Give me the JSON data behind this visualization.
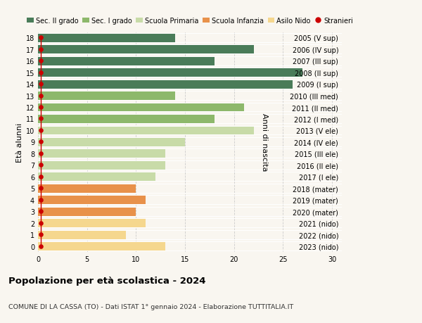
{
  "ages": [
    0,
    1,
    2,
    3,
    4,
    5,
    6,
    7,
    8,
    9,
    10,
    11,
    12,
    13,
    14,
    15,
    16,
    17,
    18
  ],
  "values": [
    13,
    9,
    11,
    10,
    11,
    10,
    12,
    13,
    13,
    15,
    22,
    18,
    21,
    14,
    26,
    27,
    18,
    22,
    14
  ],
  "right_labels": [
    "2023 (nido)",
    "2022 (nido)",
    "2021 (nido)",
    "2020 (mater)",
    "2019 (mater)",
    "2018 (mater)",
    "2017 (I ele)",
    "2016 (II ele)",
    "2015 (III ele)",
    "2014 (IV ele)",
    "2013 (V ele)",
    "2012 (I med)",
    "2011 (II med)",
    "2010 (III med)",
    "2009 (I sup)",
    "2008 (II sup)",
    "2007 (III sup)",
    "2006 (IV sup)",
    "2005 (V sup)"
  ],
  "bar_colors": [
    "#f5d78e",
    "#f5d78e",
    "#f5d78e",
    "#e8914a",
    "#e8914a",
    "#e8914a",
    "#c8dba8",
    "#c8dba8",
    "#c8dba8",
    "#c8dba8",
    "#c8dba8",
    "#8db86b",
    "#8db86b",
    "#8db86b",
    "#4a7c59",
    "#4a7c59",
    "#4a7c59",
    "#4a7c59",
    "#4a7c59"
  ],
  "legend_labels": [
    "Sec. II grado",
    "Sec. I grado",
    "Scuola Primaria",
    "Scuola Infanzia",
    "Asilo Nido",
    "Stranieri"
  ],
  "legend_colors": [
    "#4a7c59",
    "#8db86b",
    "#c8dba8",
    "#e8914a",
    "#f5d78e",
    "#cc0000"
  ],
  "title": "Popolazione per età scolastica - 2024",
  "subtitle": "COMUNE DI LA CASSA (TO) - Dati ISTAT 1° gennaio 2024 - Elaborazione TUTTITALIA.IT",
  "ylabel_left": "Età alunni",
  "ylabel_right": "Anni di nascita",
  "xlim": [
    0,
    31
  ],
  "background_color": "#f9f6f0",
  "grid_color": "#cccccc",
  "stranieri_color": "#cc0000",
  "stranieri_x": [
    0.3,
    0.3,
    0.3,
    0.3,
    0.3,
    0.3,
    0.3,
    0.3,
    0.3,
    0.3,
    0.3,
    0.3,
    0.3,
    0.3,
    0.3,
    0.3,
    0.3,
    0.3,
    0.3
  ]
}
